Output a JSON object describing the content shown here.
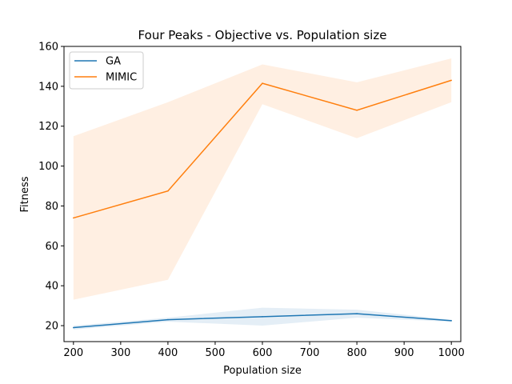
{
  "chart_data": {
    "type": "line",
    "title": "Four Peaks - Objective vs. Population size",
    "xlabel": "Population size",
    "ylabel": "Fitness",
    "xlim": [
      180,
      1020
    ],
    "ylim": [
      12,
      160
    ],
    "x_ticks": [
      200,
      300,
      400,
      500,
      600,
      700,
      800,
      900,
      1000
    ],
    "y_ticks": [
      20,
      40,
      60,
      80,
      100,
      120,
      140,
      160
    ],
    "legend_position": "top-left",
    "grid": false,
    "x": [
      200,
      400,
      600,
      800,
      1000
    ],
    "series": [
      {
        "name": "GA",
        "color": "#1f77b4",
        "values": [
          19,
          23,
          24.5,
          26,
          22.5
        ],
        "band_lower": [
          18,
          22,
          20,
          24,
          22
        ],
        "band_upper": [
          20,
          24,
          29,
          28,
          23
        ]
      },
      {
        "name": "MIMIC",
        "color": "#ff7f0e",
        "values": [
          74,
          87.5,
          141.5,
          128,
          143
        ],
        "band_lower": [
          33,
          43,
          131,
          114,
          132
        ],
        "band_upper": [
          115,
          132,
          151,
          142,
          154
        ]
      }
    ]
  }
}
